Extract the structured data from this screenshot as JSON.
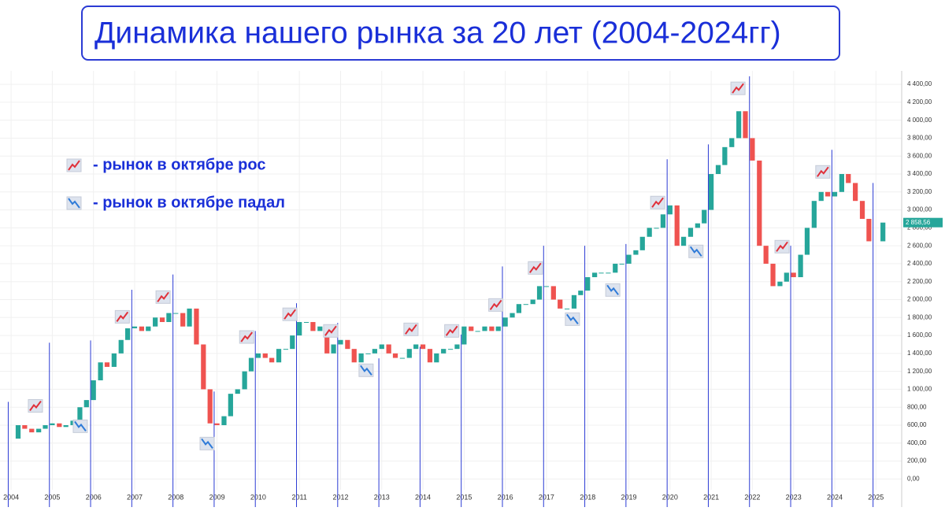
{
  "header": {
    "title": "Динамика нашего рынка за 20 лет (2004-2024гг)"
  },
  "legend": {
    "up": "- рынок в октябре рос",
    "down": "- рынок в октябре падал"
  },
  "chart_data": {
    "type": "candlestick",
    "up_color": "#26a69a",
    "down_color": "#ef5350",
    "line_color": "#2b3bd4",
    "x": [
      2004.0,
      2004.17,
      2004.33,
      2004.5,
      2004.67,
      2004.83,
      2005.0,
      2005.17,
      2005.33,
      2005.5,
      2005.67,
      2005.83,
      2006.0,
      2006.17,
      2006.33,
      2006.5,
      2006.67,
      2006.83,
      2007.0,
      2007.17,
      2007.33,
      2007.5,
      2007.67,
      2007.83,
      2008.0,
      2008.17,
      2008.33,
      2008.5,
      2008.67,
      2008.83,
      2009.0,
      2009.17,
      2009.33,
      2009.5,
      2009.67,
      2009.83,
      2010.0,
      2010.17,
      2010.33,
      2010.5,
      2010.67,
      2010.83,
      2011.0,
      2011.17,
      2011.33,
      2011.5,
      2011.67,
      2011.83,
      2012.0,
      2012.17,
      2012.33,
      2012.5,
      2012.67,
      2012.83,
      2013.0,
      2013.17,
      2013.33,
      2013.5,
      2013.67,
      2013.83,
      2014.0,
      2014.17,
      2014.33,
      2014.5,
      2014.67,
      2014.83,
      2015.0,
      2015.17,
      2015.33,
      2015.5,
      2015.67,
      2015.83,
      2016.0,
      2016.17,
      2016.33,
      2016.5,
      2016.67,
      2016.83,
      2017.0,
      2017.17,
      2017.33,
      2017.5,
      2017.67,
      2017.83,
      2018.0,
      2018.17,
      2018.33,
      2018.5,
      2018.67,
      2018.83,
      2019.0,
      2019.17,
      2019.33,
      2019.5,
      2019.67,
      2019.83,
      2020.0,
      2020.17,
      2020.33,
      2020.5,
      2020.67,
      2020.83,
      2021.0,
      2021.17,
      2021.33,
      2021.5,
      2021.67,
      2021.83,
      2022.0,
      2022.17,
      2022.33,
      2022.5,
      2022.67,
      2022.83,
      2023.0,
      2023.17,
      2023.33,
      2023.5,
      2023.67,
      2023.83,
      2024.0,
      2024.17,
      2024.33,
      2024.5,
      2024.67,
      2024.83,
      2025.17
    ],
    "values": [
      450,
      600,
      560,
      520,
      560,
      600,
      620,
      580,
      600,
      650,
      800,
      880,
      1100,
      1300,
      1250,
      1400,
      1550,
      1680,
      1700,
      1650,
      1700,
      1800,
      1750,
      1850,
      1850,
      1700,
      1900,
      1500,
      1000,
      620,
      600,
      700,
      950,
      1000,
      1200,
      1350,
      1400,
      1350,
      1300,
      1450,
      1450,
      1600,
      1750,
      1750,
      1650,
      1700,
      1400,
      1500,
      1550,
      1450,
      1300,
      1400,
      1400,
      1450,
      1500,
      1400,
      1350,
      1350,
      1450,
      1500,
      1450,
      1300,
      1400,
      1450,
      1450,
      1500,
      1700,
      1650,
      1650,
      1700,
      1650,
      1700,
      1800,
      1850,
      1950,
      1950,
      2000,
      2150,
      2150,
      2000,
      1900,
      1900,
      2050,
      2100,
      2250,
      2300,
      2300,
      2300,
      2400,
      2400,
      2500,
      2550,
      2700,
      2800,
      2800,
      2950,
      3050,
      2600,
      2700,
      2800,
      2850,
      3000,
      3400,
      3500,
      3700,
      3800,
      4100,
      3800,
      3550,
      2600,
      2400,
      2150,
      2200,
      2300,
      2250,
      2500,
      2800,
      3100,
      3200,
      3150,
      3200,
      3400,
      3300,
      3100,
      2900,
      2650,
      2858.56
    ],
    "last_label": "2 858,56",
    "lines": {
      "x": [
        2003.93,
        2004.93,
        2005.93,
        2006.93,
        2007.93,
        2008.93,
        2009.93,
        2010.93,
        2011.93,
        2012.93,
        2013.93,
        2014.93,
        2015.93,
        2016.93,
        2017.93,
        2018.93,
        2019.93,
        2020.93,
        2021.93,
        2022.93,
        2023.93,
        2024.93
      ],
      "top": [
        860,
        1520,
        1545,
        2110,
        2280,
        975,
        1650,
        1960,
        1740,
        1345,
        1475,
        1610,
        2370,
        2600,
        2600,
        2620,
        3565,
        3730,
        4490,
        2600,
        3670,
        3300
      ]
    },
    "markers": {
      "x": [
        2004.59,
        2005.68,
        2006.7,
        2007.69,
        2008.76,
        2009.72,
        2010.77,
        2011.76,
        2012.62,
        2013.71,
        2014.7,
        2015.77,
        2016.73,
        2017.63,
        2018.61,
        2019.7,
        2020.63,
        2021.65,
        2022.72,
        2023.71
      ],
      "y": [
        815,
        588,
        1808,
        2028,
        395,
        1583,
        1836,
        1651,
        1212,
        1668,
        1651,
        1940,
        2353,
        1782,
        2107,
        3082,
        2537,
        4355,
        2590,
        3424
      ],
      "direction": [
        "up",
        "down",
        "up",
        "up",
        "down",
        "up",
        "up",
        "up",
        "down",
        "up",
        "up",
        "up",
        "up",
        "down",
        "down",
        "up",
        "down",
        "up",
        "up",
        "up"
      ]
    },
    "xlim": [
      2003.73,
      2025.53
    ],
    "xticks": [
      2004,
      2005,
      2006,
      2007,
      2008,
      2009,
      2010,
      2011,
      2012,
      2013,
      2014,
      2015,
      2016,
      2017,
      2018,
      2019,
      2020,
      2021,
      2022,
      2023,
      2024,
      2025
    ],
    "ylim": [
      -190,
      4550
    ],
    "yticks": [
      {
        "value": 0,
        "label": "0,00"
      },
      {
        "value": 200,
        "label": "200,00"
      },
      {
        "value": 400,
        "label": "400,00"
      },
      {
        "value": 600,
        "label": "600,00"
      },
      {
        "value": 800,
        "label": "800,00"
      },
      {
        "value": 1000,
        "label": "1 000,00"
      },
      {
        "value": 1200,
        "label": "1 200,00"
      },
      {
        "value": 1400,
        "label": "1 400,00"
      },
      {
        "value": 1600,
        "label": "1 600,00"
      },
      {
        "value": 1800,
        "label": "1 800,00"
      },
      {
        "value": 2000,
        "label": "2 000,00"
      },
      {
        "value": 2200,
        "label": "2 200,00"
      },
      {
        "value": 2400,
        "label": "2 400,00"
      },
      {
        "value": 2600,
        "label": "2 600,00"
      },
      {
        "value": 2800,
        "label": "2 800,00"
      },
      {
        "value": 3000,
        "label": "3 000,00"
      },
      {
        "value": 3200,
        "label": "3 200,00"
      },
      {
        "value": 3400,
        "label": "3 400,00"
      },
      {
        "value": 3600,
        "label": "3 600,00"
      },
      {
        "value": 3800,
        "label": "3 800,00"
      },
      {
        "value": 4000,
        "label": "4 000,00"
      },
      {
        "value": 4200,
        "label": "4 200,00"
      },
      {
        "value": 4400,
        "label": "4 400,00"
      }
    ],
    "grid": true
  }
}
